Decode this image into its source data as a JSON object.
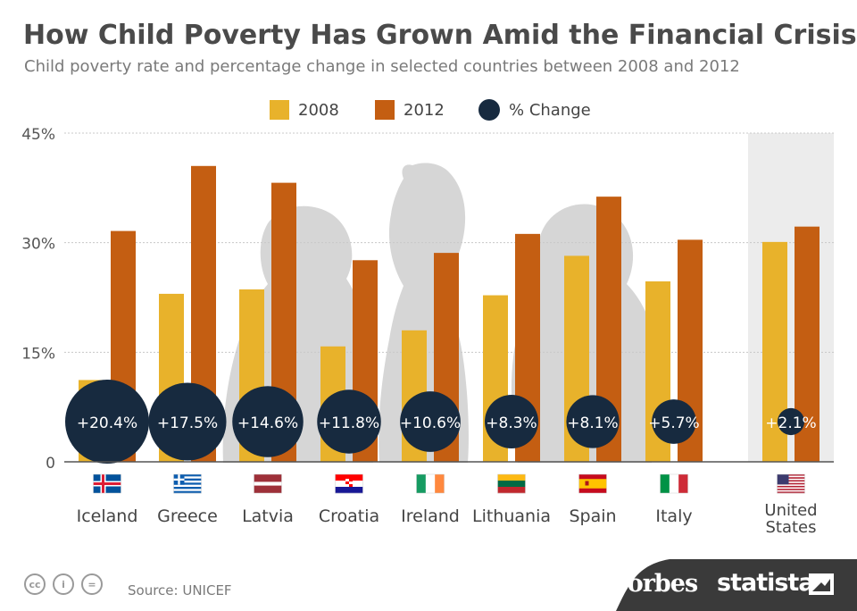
{
  "header": {
    "title": "How Child Poverty Has Grown Amid the Financial Crisis",
    "subtitle": "Child poverty rate and percentage change in selected countries between 2008 and 2012"
  },
  "legend": [
    {
      "label": "2008",
      "color": "#e8b22b",
      "shape": "square"
    },
    {
      "label": "2012",
      "color": "#c45e12",
      "shape": "square"
    },
    {
      "label": "% Change",
      "color": "#172a3f",
      "shape": "circle"
    }
  ],
  "chart_data": {
    "type": "bar",
    "categories": [
      "Iceland",
      "Greece",
      "Latvia",
      "Croatia",
      "Ireland",
      "Lithuania",
      "Spain",
      "Italy",
      "United States"
    ],
    "series": [
      {
        "name": "2008",
        "values": [
          11.2,
          23.0,
          23.6,
          15.8,
          18.0,
          22.8,
          28.2,
          24.7,
          30.1
        ],
        "color": "#e8b22b"
      },
      {
        "name": "2012",
        "values": [
          31.6,
          40.5,
          38.2,
          27.6,
          28.6,
          31.2,
          36.3,
          30.4,
          32.2
        ],
        "color": "#c45e12"
      }
    ],
    "pct_change": {
      "name": "% Change",
      "values": [
        20.4,
        17.5,
        14.6,
        11.8,
        10.6,
        8.3,
        8.1,
        5.7,
        2.1
      ],
      "labels": [
        "+20.4%",
        "+17.5%",
        "+14.6%",
        "+11.8%",
        "+10.6%",
        "+8.3%",
        "+8.1%",
        "+5.7%",
        "+2.1%"
      ],
      "color": "#172a3f"
    },
    "category_labels": [
      [
        "Iceland"
      ],
      [
        "Greece"
      ],
      [
        "Latvia"
      ],
      [
        "Croatia"
      ],
      [
        "Ireland"
      ],
      [
        "Lithuania"
      ],
      [
        "Spain"
      ],
      [
        "Italy"
      ],
      [
        "United",
        "States"
      ]
    ],
    "flags": [
      "iceland-flag",
      "greece-flag",
      "latvia-flag",
      "croatia-flag",
      "ireland-flag",
      "lithuania-flag",
      "spain-flag",
      "italy-flag",
      "usa-flag"
    ],
    "highlighted_category": "United States",
    "ylim": [
      0,
      45
    ],
    "yticks": [
      0,
      15,
      30,
      45
    ],
    "ytick_labels": [
      "0",
      "15%",
      "30%",
      "45%"
    ],
    "grid": true,
    "legend_position": "top-center"
  },
  "footer": {
    "source": "Source: UNICEF",
    "license_icons": [
      "cc-icon",
      "by-icon",
      "nd-icon"
    ],
    "license_glyphs": [
      "cc",
      "i",
      "="
    ],
    "brands": [
      "Forbes",
      "statista"
    ]
  }
}
